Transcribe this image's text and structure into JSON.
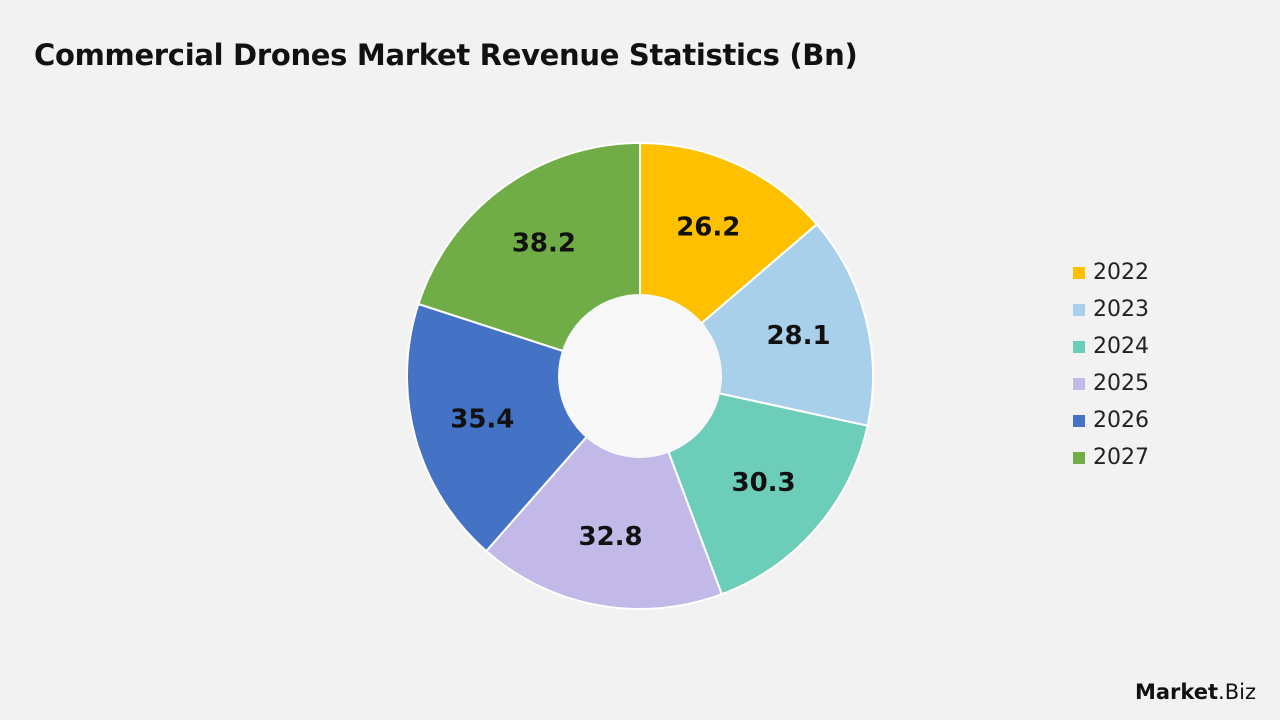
{
  "title": "Commercial Drones Market Revenue Statistics (Bn)",
  "brand": {
    "bold": "Market",
    "regular": ".Biz"
  },
  "chart_data": {
    "type": "pie",
    "variant": "doughnut",
    "title": "Commercial Drones Market Revenue Statistics (Bn)",
    "categories": [
      "2022",
      "2023",
      "2024",
      "2025",
      "2026",
      "2027"
    ],
    "values": [
      26.2,
      28.1,
      30.3,
      32.8,
      35.4,
      38.2
    ],
    "colors": [
      "#ffc000",
      "#a9d0ea",
      "#6ccdb8",
      "#c3b9e8",
      "#4472c4",
      "#70ad47"
    ],
    "data_labels": [
      "26.2",
      "28.1",
      "30.3",
      "32.8",
      "35.4",
      "38.2"
    ],
    "legend_position": "right",
    "start_angle_deg": 0,
    "direction": "clockwise"
  }
}
